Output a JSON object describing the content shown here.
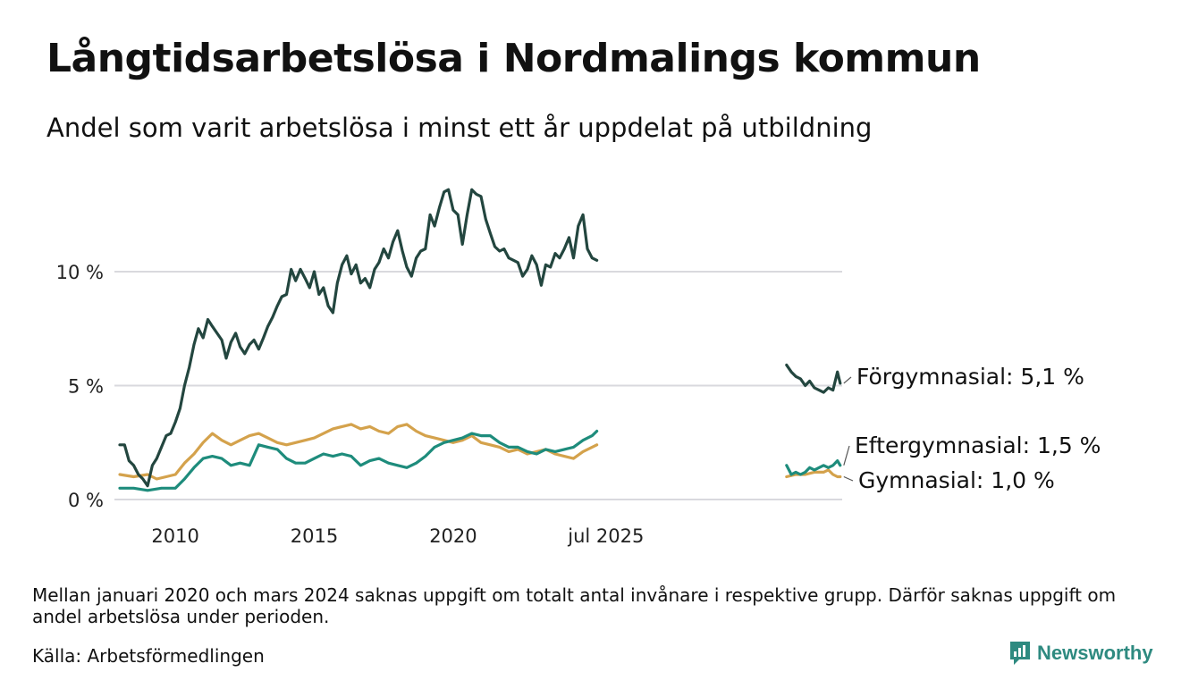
{
  "header": {
    "title": "Långtidsarbetslösa i Nordmalings kommun",
    "subtitle": "Andel som varit arbetslösa i minst ett år uppdelat på utbildning"
  },
  "footer": {
    "note": "Mellan januari 2020 och mars 2024 saknas uppgift om totalt antal invånare i respektive grupp. Därför saknas uppgift om andel arbetslösa under perioden.",
    "source": "Källa: Arbetsförmedlingen",
    "brand": "Newsworthy"
  },
  "colors": {
    "forgymnasial": "#23463f",
    "eftergymnasial": "#1e8c7c",
    "gymnasial": "#d4a24c",
    "grid": "#d9d9de",
    "brand": "#2e8a80"
  },
  "icons": {
    "brand": "chart-logo-icon"
  },
  "chart_data": {
    "type": "line",
    "title": "Långtidsarbetslösa i Nordmalings kommun",
    "subtitle": "Andel som varit arbetslösa i minst ett år uppdelat på utbildning",
    "xlabel": "",
    "ylabel": "",
    "y_range": [
      0,
      14
    ],
    "y_ticks": [
      0,
      5,
      10
    ],
    "y_tick_labels": [
      "0 %",
      "5 %",
      "10 %"
    ],
    "x_ticks": [
      2010,
      2015,
      2020,
      2025.5
    ],
    "x_tick_labels": [
      "2010",
      "2015",
      "2020",
      "jul 2025"
    ],
    "grid": true,
    "legend": "direct labels at right end of lines",
    "series": [
      {
        "name": "Förgymnasial",
        "end_label": "Förgymnasial: 5,1 %",
        "color": "#23463f",
        "segments": [
          [
            [
              2008.0,
              2.4
            ],
            [
              2008.17,
              2.4
            ],
            [
              2008.33,
              1.7
            ],
            [
              2008.5,
              1.5
            ],
            [
              2008.67,
              1.1
            ],
            [
              2008.83,
              0.9
            ],
            [
              2009.0,
              0.6
            ],
            [
              2009.17,
              1.5
            ],
            [
              2009.33,
              1.8
            ],
            [
              2009.5,
              2.3
            ],
            [
              2009.67,
              2.8
            ],
            [
              2009.83,
              2.9
            ],
            [
              2010.0,
              3.4
            ],
            [
              2010.17,
              4.0
            ],
            [
              2010.33,
              5.0
            ],
            [
              2010.5,
              5.8
            ],
            [
              2010.67,
              6.8
            ],
            [
              2010.83,
              7.5
            ],
            [
              2011.0,
              7.1
            ],
            [
              2011.17,
              7.9
            ],
            [
              2011.33,
              7.6
            ],
            [
              2011.5,
              7.3
            ],
            [
              2011.67,
              7.0
            ],
            [
              2011.83,
              6.2
            ],
            [
              2012.0,
              6.9
            ],
            [
              2012.17,
              7.3
            ],
            [
              2012.33,
              6.7
            ],
            [
              2012.5,
              6.4
            ],
            [
              2012.67,
              6.8
            ],
            [
              2012.83,
              7.0
            ],
            [
              2013.0,
              6.6
            ],
            [
              2013.17,
              7.1
            ],
            [
              2013.33,
              7.6
            ],
            [
              2013.5,
              8.0
            ],
            [
              2013.67,
              8.5
            ],
            [
              2013.83,
              8.9
            ],
            [
              2014.0,
              9.0
            ],
            [
              2014.17,
              10.1
            ],
            [
              2014.33,
              9.6
            ],
            [
              2014.5,
              10.1
            ],
            [
              2014.67,
              9.7
            ],
            [
              2014.83,
              9.3
            ],
            [
              2015.0,
              10.0
            ],
            [
              2015.17,
              9.0
            ],
            [
              2015.33,
              9.3
            ],
            [
              2015.5,
              8.5
            ],
            [
              2015.67,
              8.2
            ],
            [
              2015.83,
              9.5
            ],
            [
              2016.0,
              10.3
            ],
            [
              2016.17,
              10.7
            ],
            [
              2016.33,
              9.9
            ],
            [
              2016.5,
              10.3
            ],
            [
              2016.67,
              9.5
            ],
            [
              2016.83,
              9.7
            ],
            [
              2017.0,
              9.3
            ],
            [
              2017.17,
              10.1
            ],
            [
              2017.33,
              10.4
            ],
            [
              2017.5,
              11.0
            ],
            [
              2017.67,
              10.6
            ],
            [
              2017.83,
              11.3
            ],
            [
              2018.0,
              11.8
            ],
            [
              2018.17,
              10.9
            ],
            [
              2018.33,
              10.2
            ],
            [
              2018.5,
              9.8
            ],
            [
              2018.67,
              10.6
            ],
            [
              2018.83,
              10.9
            ],
            [
              2019.0,
              11.0
            ],
            [
              2019.17,
              12.5
            ],
            [
              2019.33,
              12.0
            ],
            [
              2019.5,
              12.8
            ],
            [
              2019.67,
              13.5
            ],
            [
              2019.83,
              13.6
            ],
            [
              2020.0,
              12.7
            ],
            [
              2020.17,
              12.5
            ],
            [
              2020.33,
              11.2
            ],
            [
              2020.5,
              12.5
            ],
            [
              2020.67,
              13.6
            ],
            [
              2020.83,
              13.4
            ],
            [
              2021.0,
              13.3
            ],
            [
              2021.17,
              12.3
            ],
            [
              2021.33,
              11.7
            ],
            [
              2021.5,
              11.1
            ],
            [
              2021.67,
              10.9
            ],
            [
              2021.83,
              11.0
            ],
            [
              2022.0,
              10.6
            ],
            [
              2022.17,
              10.5
            ],
            [
              2022.33,
              10.4
            ],
            [
              2022.5,
              9.8
            ],
            [
              2022.67,
              10.1
            ],
            [
              2022.83,
              10.7
            ],
            [
              2023.0,
              10.3
            ],
            [
              2023.17,
              9.4
            ],
            [
              2023.33,
              10.3
            ],
            [
              2023.5,
              10.2
            ],
            [
              2023.67,
              10.8
            ],
            [
              2023.83,
              10.6
            ],
            [
              2024.0,
              11.0
            ],
            [
              2024.17,
              11.5
            ],
            [
              2024.33,
              10.6
            ],
            [
              2024.5,
              12.0
            ],
            [
              2024.67,
              12.5
            ],
            [
              2024.83,
              11.0
            ],
            [
              2025.0,
              10.6
            ],
            [
              2025.17,
              10.5
            ]
          ],
          [
            [
              2032.0,
              5.9
            ],
            [
              2032.17,
              5.6
            ],
            [
              2032.33,
              5.4
            ],
            [
              2032.5,
              5.3
            ],
            [
              2032.67,
              5.0
            ],
            [
              2032.83,
              5.2
            ],
            [
              2033.0,
              4.9
            ],
            [
              2033.17,
              4.8
            ],
            [
              2033.33,
              4.7
            ],
            [
              2033.5,
              4.9
            ],
            [
              2033.67,
              4.8
            ],
            [
              2033.83,
              5.6
            ],
            [
              2033.93,
              5.1
            ]
          ]
        ]
      },
      {
        "name": "Eftergymnasial",
        "end_label": "Eftergymnasial: 1,5 %",
        "color": "#1e8c7c",
        "segments": [
          [
            [
              2008.0,
              0.5
            ],
            [
              2008.5,
              0.5
            ],
            [
              2009.0,
              0.4
            ],
            [
              2009.5,
              0.5
            ],
            [
              2010.0,
              0.5
            ],
            [
              2010.33,
              0.9
            ],
            [
              2010.67,
              1.4
            ],
            [
              2011.0,
              1.8
            ],
            [
              2011.33,
              1.9
            ],
            [
              2011.67,
              1.8
            ],
            [
              2012.0,
              1.5
            ],
            [
              2012.33,
              1.6
            ],
            [
              2012.67,
              1.5
            ],
            [
              2013.0,
              2.4
            ],
            [
              2013.33,
              2.3
            ],
            [
              2013.67,
              2.2
            ],
            [
              2014.0,
              1.8
            ],
            [
              2014.33,
              1.6
            ],
            [
              2014.67,
              1.6
            ],
            [
              2015.0,
              1.8
            ],
            [
              2015.33,
              2.0
            ],
            [
              2015.67,
              1.9
            ],
            [
              2016.0,
              2.0
            ],
            [
              2016.33,
              1.9
            ],
            [
              2016.67,
              1.5
            ],
            [
              2017.0,
              1.7
            ],
            [
              2017.33,
              1.8
            ],
            [
              2017.67,
              1.6
            ],
            [
              2018.0,
              1.5
            ],
            [
              2018.33,
              1.4
            ],
            [
              2018.67,
              1.6
            ],
            [
              2019.0,
              1.9
            ],
            [
              2019.33,
              2.3
            ],
            [
              2019.67,
              2.5
            ],
            [
              2020.0,
              2.6
            ],
            [
              2020.33,
              2.7
            ],
            [
              2020.67,
              2.9
            ],
            [
              2021.0,
              2.8
            ],
            [
              2021.33,
              2.8
            ],
            [
              2021.67,
              2.5
            ],
            [
              2022.0,
              2.3
            ],
            [
              2022.33,
              2.3
            ],
            [
              2022.67,
              2.1
            ],
            [
              2023.0,
              2.0
            ],
            [
              2023.33,
              2.2
            ],
            [
              2023.67,
              2.1
            ],
            [
              2024.0,
              2.2
            ],
            [
              2024.33,
              2.3
            ],
            [
              2024.67,
              2.6
            ],
            [
              2025.0,
              2.8
            ],
            [
              2025.17,
              3.0
            ]
          ],
          [
            [
              2032.0,
              1.5
            ],
            [
              2032.17,
              1.1
            ],
            [
              2032.33,
              1.2
            ],
            [
              2032.5,
              1.1
            ],
            [
              2032.67,
              1.2
            ],
            [
              2032.83,
              1.4
            ],
            [
              2033.0,
              1.3
            ],
            [
              2033.17,
              1.4
            ],
            [
              2033.33,
              1.5
            ],
            [
              2033.5,
              1.4
            ],
            [
              2033.67,
              1.5
            ],
            [
              2033.83,
              1.7
            ],
            [
              2033.93,
              1.5
            ]
          ]
        ]
      },
      {
        "name": "Gymnasial",
        "end_label": "Gymnasial: 1,0 %",
        "color": "#d4a24c",
        "segments": [
          [
            [
              2008.0,
              1.1
            ],
            [
              2008.5,
              1.0
            ],
            [
              2009.0,
              1.1
            ],
            [
              2009.33,
              0.9
            ],
            [
              2009.67,
              1.0
            ],
            [
              2010.0,
              1.1
            ],
            [
              2010.33,
              1.6
            ],
            [
              2010.67,
              2.0
            ],
            [
              2011.0,
              2.5
            ],
            [
              2011.33,
              2.9
            ],
            [
              2011.67,
              2.6
            ],
            [
              2012.0,
              2.4
            ],
            [
              2012.33,
              2.6
            ],
            [
              2012.67,
              2.8
            ],
            [
              2013.0,
              2.9
            ],
            [
              2013.33,
              2.7
            ],
            [
              2013.67,
              2.5
            ],
            [
              2014.0,
              2.4
            ],
            [
              2014.33,
              2.5
            ],
            [
              2014.67,
              2.6
            ],
            [
              2015.0,
              2.7
            ],
            [
              2015.33,
              2.9
            ],
            [
              2015.67,
              3.1
            ],
            [
              2016.0,
              3.2
            ],
            [
              2016.33,
              3.3
            ],
            [
              2016.67,
              3.1
            ],
            [
              2017.0,
              3.2
            ],
            [
              2017.33,
              3.0
            ],
            [
              2017.67,
              2.9
            ],
            [
              2018.0,
              3.2
            ],
            [
              2018.33,
              3.3
            ],
            [
              2018.67,
              3.0
            ],
            [
              2019.0,
              2.8
            ],
            [
              2019.33,
              2.7
            ],
            [
              2019.67,
              2.6
            ],
            [
              2020.0,
              2.5
            ],
            [
              2020.33,
              2.6
            ],
            [
              2020.67,
              2.8
            ],
            [
              2021.0,
              2.5
            ],
            [
              2021.33,
              2.4
            ],
            [
              2021.67,
              2.3
            ],
            [
              2022.0,
              2.1
            ],
            [
              2022.33,
              2.2
            ],
            [
              2022.67,
              2.0
            ],
            [
              2023.0,
              2.1
            ],
            [
              2023.33,
              2.2
            ],
            [
              2023.67,
              2.0
            ],
            [
              2024.0,
              1.9
            ],
            [
              2024.33,
              1.8
            ],
            [
              2024.67,
              2.1
            ],
            [
              2025.0,
              2.3
            ],
            [
              2025.17,
              2.4
            ]
          ],
          [
            [
              2032.0,
              1.0
            ],
            [
              2032.33,
              1.1
            ],
            [
              2032.67,
              1.1
            ],
            [
              2033.0,
              1.2
            ],
            [
              2033.33,
              1.2
            ],
            [
              2033.5,
              1.3
            ],
            [
              2033.67,
              1.1
            ],
            [
              2033.83,
              1.0
            ],
            [
              2033.93,
              1.0
            ]
          ]
        ]
      }
    ]
  }
}
